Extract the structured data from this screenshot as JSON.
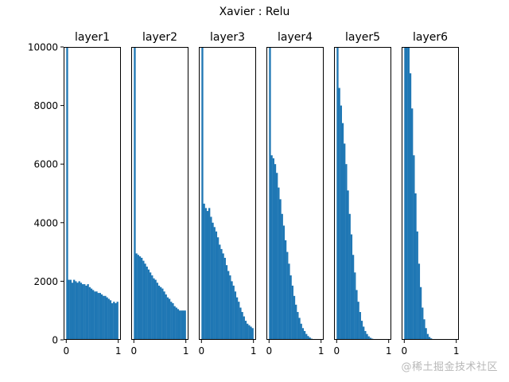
{
  "figure": {
    "suptitle": "Xavier : Relu",
    "watermark": "@稀土掘金技术社区",
    "bar_color": "#1f77b4"
  },
  "chart_data": {
    "type": "bar",
    "title": "Xavier : Relu",
    "layout": {
      "subplots": 6,
      "rows": 1,
      "sharey": true,
      "grid": false,
      "legend": false
    },
    "ylim": [
      0,
      10000
    ],
    "xlim": [
      0,
      1
    ],
    "yticks": [
      0,
      2000,
      4000,
      6000,
      8000,
      10000
    ],
    "xticks": [
      0,
      1
    ],
    "xlabel": "",
    "ylabel": "",
    "panels": [
      {
        "title": "layer1",
        "bins": 30,
        "values": [
          30000,
          2050,
          2050,
          1950,
          2050,
          2000,
          1950,
          2000,
          1950,
          1900,
          1900,
          1850,
          1900,
          1800,
          1750,
          1700,
          1650,
          1650,
          1600,
          1600,
          1550,
          1500,
          1500,
          1450,
          1400,
          1350,
          1250,
          1300,
          1250,
          1300
        ]
      },
      {
        "title": "layer2",
        "bins": 30,
        "values": [
          30000,
          2950,
          2900,
          2850,
          2800,
          2700,
          2600,
          2500,
          2400,
          2300,
          2200,
          2100,
          2050,
          1950,
          1850,
          1800,
          1750,
          1650,
          1550,
          1450,
          1400,
          1300,
          1250,
          1150,
          1100,
          1050,
          1000,
          1000,
          1000,
          1000
        ]
      },
      {
        "title": "layer3",
        "bins": 30,
        "values": [
          30000,
          4650,
          4500,
          4400,
          4500,
          4200,
          4000,
          3850,
          3700,
          3500,
          3250,
          3100,
          2950,
          2800,
          2550,
          2350,
          2200,
          2000,
          1850,
          1650,
          1450,
          1300,
          1100,
          950,
          800,
          650,
          550,
          500,
          450,
          400
        ]
      },
      {
        "title": "layer4",
        "bins": 30,
        "values": [
          30000,
          6300,
          6200,
          6000,
          5700,
          5200,
          4800,
          4300,
          3900,
          3400,
          3000,
          2600,
          2200,
          1850,
          1500,
          1200,
          950,
          750,
          550,
          400,
          300,
          200,
          130,
          80,
          40,
          20,
          10,
          5,
          0,
          0
        ]
      },
      {
        "title": "layer5",
        "bins": 30,
        "values": [
          30000,
          8600,
          8000,
          7400,
          6700,
          6000,
          5100,
          4300,
          3600,
          2900,
          2300,
          1700,
          1300,
          950,
          650,
          450,
          300,
          200,
          120,
          70,
          40,
          20,
          10,
          5,
          0,
          0,
          0,
          0,
          0,
          0
        ]
      },
      {
        "title": "layer6",
        "bins": 30,
        "values": [
          30000,
          30000,
          11000,
          9100,
          7900,
          6300,
          5000,
          3700,
          2600,
          1800,
          1100,
          700,
          400,
          200,
          100,
          50,
          20,
          10,
          0,
          0,
          0,
          0,
          0,
          0,
          0,
          0,
          0,
          0,
          0,
          0
        ]
      }
    ]
  }
}
